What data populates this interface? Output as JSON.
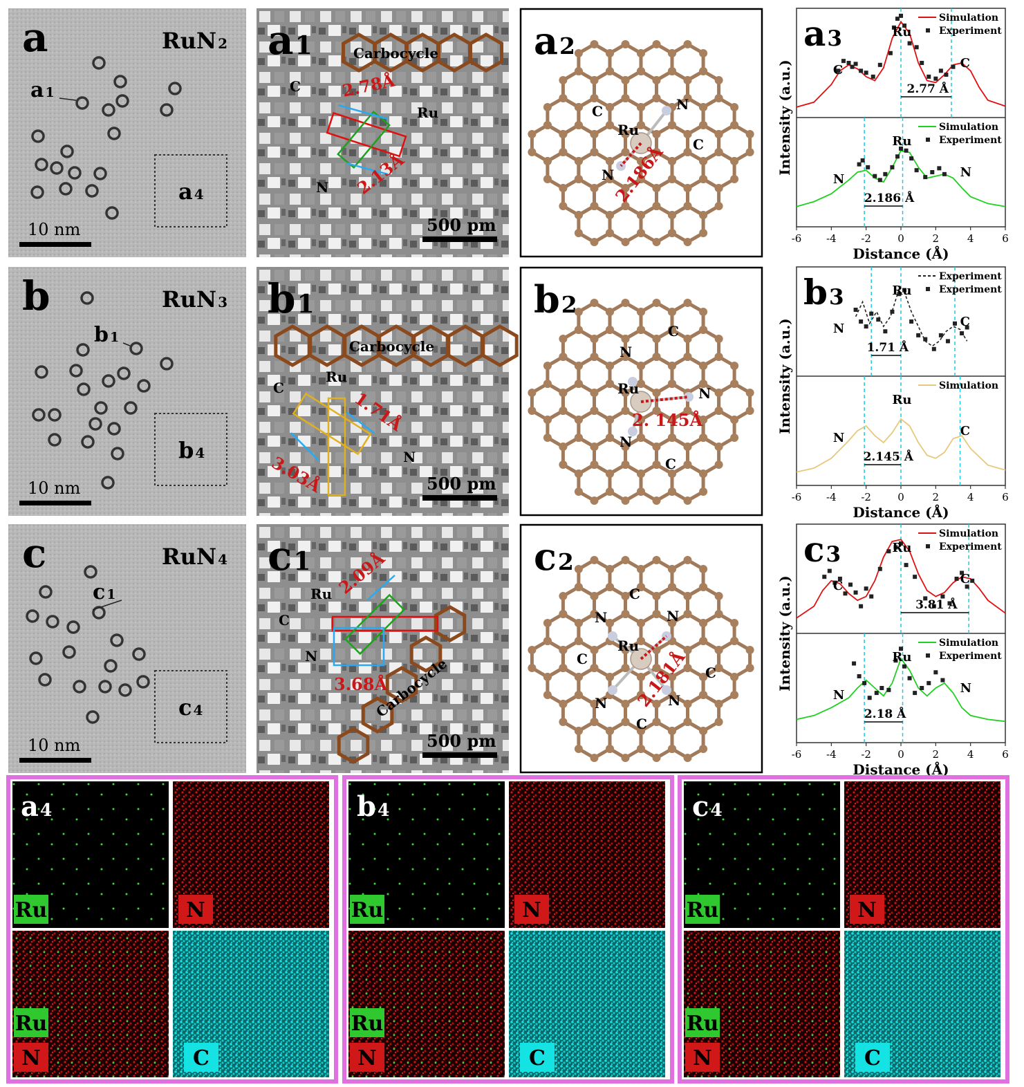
{
  "rows": [
    {
      "letter": "a",
      "compound": "RuN",
      "compound_sub": "2",
      "atom_label": "a",
      "atom_label_sub": "1",
      "eds_label": "a",
      "eds_label_sub": "4",
      "scale_tem": "10 nm",
      "hr_label": "a",
      "hr_label_sub": "1",
      "scale_hr": "500 pm",
      "carbocycle": "Carbocycle",
      "hr_annotations": {
        "c": "C",
        "ru": "Ru",
        "n": "N",
        "d1": "2.78Å",
        "d2": "2.13Å"
      },
      "model_label": "a",
      "model_label_sub": "2",
      "model_atoms": {
        "ru": "Ru",
        "c1": "C",
        "c2": "C",
        "n1": "N",
        "n2": "N"
      },
      "bond": "2.186Å",
      "profile_label": "a",
      "profile_label_sub": "3"
    },
    {
      "letter": "b",
      "compound": "RuN",
      "compound_sub": "3",
      "atom_label": "b",
      "atom_label_sub": "1",
      "eds_label": "b",
      "eds_label_sub": "4",
      "scale_tem": "10 nm",
      "hr_label": "b",
      "hr_label_sub": "1",
      "scale_hr": "500 pm",
      "carbocycle": "Carbocycle",
      "hr_annotations": {
        "c": "C",
        "ru": "Ru",
        "n": "N",
        "d1": "1.71Å",
        "d2": "3.03Å"
      },
      "model_label": "b",
      "model_label_sub": "2",
      "model_atoms": {
        "ru": "Ru",
        "c1": "C",
        "c2": "C",
        "n1": "N",
        "n2": "N",
        "n3": "N"
      },
      "bond": "2. 145Å",
      "profile_label": "b",
      "profile_label_sub": "3"
    },
    {
      "letter": "c",
      "compound": "RuN",
      "compound_sub": "4",
      "atom_label": "c",
      "atom_label_sub": "1",
      "eds_label": "c",
      "eds_label_sub": "4",
      "scale_tem": "10 nm",
      "hr_label": "c",
      "hr_label_sub": "1",
      "scale_hr": "500 pm",
      "carbocycle": "Carbocycle",
      "hr_annotations": {
        "c": "C",
        "ru": "Ru",
        "n": "N",
        "d1": "2.09Å",
        "d2": "3.68Å"
      },
      "model_label": "c",
      "model_label_sub": "2",
      "model_atoms": {
        "ru": "Ru",
        "c1": "C",
        "c2": "C",
        "c3": "C",
        "c4": "C",
        "n1": "N",
        "n2": "N",
        "n3": "N",
        "n4": "N"
      },
      "bond": "2.181Å",
      "profile_label": "c",
      "profile_label_sub": "3"
    }
  ],
  "eds_panels": [
    {
      "label": "a",
      "label_sub": "4",
      "maps": {
        "ru": "Ru",
        "n": "N",
        "overlay_ru": "Ru",
        "overlay_n": "N",
        "c": "C"
      }
    },
    {
      "label": "b",
      "label_sub": "4",
      "maps": {
        "ru": "Ru",
        "n": "N",
        "overlay_ru": "Ru",
        "overlay_n": "N",
        "c": "C"
      }
    },
    {
      "label": "c",
      "label_sub": "4",
      "maps": {
        "ru": "Ru",
        "n": "N",
        "overlay_ru": "Ru",
        "overlay_n": "N",
        "c": "C"
      }
    }
  ],
  "colors": {
    "bond_red": "#c81818",
    "carbon_brown": "#a07a5a",
    "carbocycle_brown": "#8b4a1e",
    "ru_green": "#2fc82f",
    "n_red": "#d01818",
    "c_cyan": "#15e3e3",
    "eds_frame": "#e070e0",
    "simulation_red": "#e01010",
    "simulation_green": "#20d020",
    "simulation_yellow": "#e8c87a",
    "guide_cyan": "#20c8e0"
  },
  "chart_data": [
    {
      "type": "line",
      "panel": "a3",
      "xlabel": "Distance (Å)",
      "ylabel": "Intensity (a.u.)",
      "xlim": [
        -6,
        6
      ],
      "xticks": [
        -6,
        -4,
        -2,
        0,
        2,
        4,
        6
      ],
      "subplots": [
        {
          "legend": [
            "Simulation",
            "Experiment"
          ],
          "labels": {
            "left": "C",
            "center": "Ru",
            "right": "C"
          },
          "annotation": "2.77 Å",
          "guides": [
            0,
            2.9
          ],
          "simulation": {
            "x": [
              -6,
              -5,
              -4,
              -3.5,
              -3,
              -2.5,
              -2,
              -1.5,
              -1,
              -0.5,
              0,
              0.5,
              1,
              1.5,
              2,
              2.5,
              3,
              3.5,
              4,
              4.5,
              5,
              6
            ],
            "y": [
              0.05,
              0.1,
              0.28,
              0.42,
              0.48,
              0.44,
              0.36,
              0.32,
              0.45,
              0.75,
              0.92,
              0.8,
              0.5,
              0.32,
              0.3,
              0.38,
              0.48,
              0.5,
              0.42,
              0.25,
              0.12,
              0.06
            ]
          },
          "experiment": {
            "x": [
              -3.6,
              -3.3,
              -3,
              -2.8,
              -2.6,
              -2.3,
              -2,
              -1.6,
              -1.2,
              -0.6,
              -0.4,
              -0.2,
              0,
              0.2,
              0.5,
              0.9,
              1.2,
              1.6,
              2,
              2.3,
              2.6,
              3
            ],
            "y": [
              0.42,
              0.52,
              0.5,
              0.46,
              0.49,
              0.42,
              0.4,
              0.36,
              0.48,
              0.6,
              0.86,
              0.95,
              0.98,
              0.88,
              0.7,
              0.66,
              0.5,
              0.36,
              0.34,
              0.42,
              0.38,
              0.46
            ]
          }
        },
        {
          "legend": [
            "Simulation",
            "Experiment"
          ],
          "labels": {
            "left": "N",
            "center": "Ru",
            "right": "N"
          },
          "annotation": "2.186 Å",
          "guides": [
            -2.1,
            0.1
          ],
          "simulation": {
            "x": [
              -6,
              -5,
              -4,
              -3,
              -2.5,
              -2,
              -1.5,
              -1,
              -0.5,
              0,
              0.5,
              1,
              1.5,
              2,
              2.5,
              3,
              3.5,
              4,
              5,
              6
            ],
            "y": [
              0.15,
              0.2,
              0.28,
              0.42,
              0.5,
              0.52,
              0.44,
              0.4,
              0.55,
              0.72,
              0.7,
              0.55,
              0.44,
              0.46,
              0.48,
              0.44,
              0.34,
              0.25,
              0.18,
              0.15
            ]
          },
          "experiment": {
            "x": [
              -2.4,
              -2.2,
              -1.9,
              -1.5,
              -1.2,
              -0.9,
              -0.5,
              -0.2,
              0,
              0.3,
              0.6,
              0.9,
              1.4,
              1.8,
              2.2,
              2.5
            ],
            "y": [
              0.58,
              0.62,
              0.55,
              0.46,
              0.42,
              0.48,
              0.55,
              0.66,
              0.74,
              0.72,
              0.64,
              0.52,
              0.45,
              0.5,
              0.54,
              0.48
            ]
          }
        }
      ]
    },
    {
      "type": "line",
      "panel": "b3",
      "xlabel": "Distance (Å)",
      "ylabel": "Intensity (a.u.)",
      "xlim": [
        -6,
        6
      ],
      "xticks": [
        -6,
        -4,
        -2,
        0,
        2,
        4,
        6
      ],
      "subplots": [
        {
          "legend": [
            "Experiment",
            "Experiment"
          ],
          "labels": {
            "left": "N",
            "center": "Ru",
            "right": "C"
          },
          "annotation": "1.71 Å",
          "guides": [
            -1.7,
            0,
            3.1
          ],
          "dashed": {
            "x": [
              -2.6,
              -2.2,
              -1.8,
              -1.4,
              -1,
              -0.6,
              -0.2,
              0.2,
              0.6,
              1,
              1.4,
              1.8,
              2.2,
              2.6,
              3,
              3.4,
              3.8
            ],
            "y": [
              0.55,
              0.7,
              0.48,
              0.6,
              0.45,
              0.55,
              0.78,
              0.8,
              0.6,
              0.45,
              0.3,
              0.25,
              0.3,
              0.4,
              0.45,
              0.42,
              0.3
            ]
          },
          "experiment": {
            "x": [
              -2.6,
              -2.3,
              -2,
              -1.7,
              -1.3,
              -0.9,
              -0.5,
              -0.1,
              0.2,
              0.6,
              1,
              1.4,
              1.9,
              2.3,
              2.7,
              3.1,
              3.5,
              3.8
            ],
            "y": [
              0.62,
              0.5,
              0.45,
              0.58,
              0.52,
              0.4,
              0.6,
              0.78,
              0.82,
              0.5,
              0.36,
              0.32,
              0.22,
              0.36,
              0.3,
              0.48,
              0.38,
              0.44
            ]
          }
        },
        {
          "legend": [
            "Simulation"
          ],
          "labels": {
            "left": "N",
            "center": "Ru",
            "right": "C"
          },
          "annotation": "2.145 Å",
          "guides": [
            -2.1,
            0,
            3.4
          ],
          "simulation": {
            "x": [
              -6,
              -5,
              -4,
              -3,
              -2.5,
              -2,
              -1.5,
              -1,
              -0.5,
              0,
              0.5,
              1,
              1.5,
              2,
              2.5,
              3,
              3.5,
              4,
              5,
              6
            ],
            "y": [
              0.08,
              0.12,
              0.22,
              0.4,
              0.5,
              0.55,
              0.45,
              0.38,
              0.48,
              0.62,
              0.55,
              0.38,
              0.25,
              0.22,
              0.28,
              0.42,
              0.45,
              0.32,
              0.15,
              0.1
            ]
          }
        }
      ]
    },
    {
      "type": "line",
      "panel": "c3",
      "xlabel": "Distance (Å)",
      "ylabel": "Intensity (a.u.)",
      "xlim": [
        -6,
        6
      ],
      "xticks": [
        -6,
        -4,
        -2,
        0,
        2,
        4,
        6
      ],
      "subplots": [
        {
          "legend": [
            "Simulation",
            "Experiment"
          ],
          "labels": {
            "left": "C",
            "center": "Ru",
            "right": "C"
          },
          "annotation": "3.81 Å",
          "guides": [
            0,
            3.9
          ],
          "simulation": {
            "x": [
              -6,
              -5,
              -4.5,
              -4,
              -3.5,
              -3,
              -2.5,
              -2,
              -1.5,
              -1,
              -0.5,
              0,
              0.5,
              1,
              1.5,
              2,
              2.5,
              3,
              3.5,
              4,
              4.5,
              5,
              6
            ],
            "y": [
              0.1,
              0.22,
              0.38,
              0.48,
              0.45,
              0.35,
              0.28,
              0.32,
              0.48,
              0.72,
              0.88,
              0.9,
              0.78,
              0.55,
              0.38,
              0.32,
              0.36,
              0.46,
              0.52,
              0.5,
              0.4,
              0.28,
              0.15
            ]
          },
          "experiment": {
            "x": [
              -4.4,
              -4.1,
              -3.8,
              -3.5,
              -3.2,
              -2.9,
              -2.6,
              -2.3,
              -2,
              -1.7,
              -1.2,
              -0.7,
              -0.3,
              0,
              0.3,
              0.8,
              1.4,
              1.9,
              2.4,
              2.8,
              3.2,
              3.5,
              3.8,
              4.1
            ],
            "y": [
              0.52,
              0.58,
              0.46,
              0.5,
              0.35,
              0.44,
              0.36,
              0.22,
              0.4,
              0.32,
              0.6,
              0.78,
              0.82,
              0.86,
              0.64,
              0.52,
              0.3,
              0.22,
              0.32,
              0.25,
              0.5,
              0.56,
              0.42,
              0.48
            ]
          }
        },
        {
          "legend": [
            "Simulation",
            "Experiment"
          ],
          "labels": {
            "left": "N",
            "center": "Ru",
            "right": "N"
          },
          "annotation": "2.18 Å",
          "guides": [
            -2.1,
            0.1
          ],
          "simulation": {
            "x": [
              -6,
              -5,
              -4,
              -3,
              -2.5,
              -2,
              -1.5,
              -1,
              -0.5,
              0,
              0.5,
              1,
              1.5,
              2,
              2.5,
              3,
              3.5,
              4,
              5,
              6
            ],
            "y": [
              0.18,
              0.22,
              0.3,
              0.4,
              0.5,
              0.58,
              0.5,
              0.42,
              0.55,
              0.8,
              0.68,
              0.5,
              0.42,
              0.5,
              0.55,
              0.45,
              0.3,
              0.22,
              0.18,
              0.16
            ]
          },
          "experiment": {
            "x": [
              -2.7,
              -2.4,
              -2.1,
              -1.8,
              -1.4,
              -1.1,
              -0.7,
              -0.3,
              0,
              0.2,
              0.5,
              0.8,
              1.2,
              1.6,
              2,
              2.4
            ],
            "y": [
              0.75,
              0.62,
              0.55,
              0.4,
              0.45,
              0.5,
              0.48,
              0.78,
              0.9,
              0.72,
              0.6,
              0.45,
              0.5,
              0.55,
              0.66,
              0.58
            ]
          }
        }
      ]
    }
  ]
}
